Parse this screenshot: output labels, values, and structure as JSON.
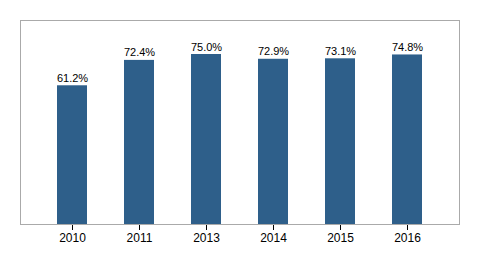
{
  "chart_data": {
    "type": "bar",
    "categories": [
      "2010",
      "2011",
      "2013",
      "2014",
      "2015",
      "2016"
    ],
    "values": [
      61.2,
      72.4,
      75.0,
      72.9,
      73.1,
      74.8
    ],
    "value_labels": [
      "61.2%",
      "72.4%",
      "75.0%",
      "72.9%",
      "73.1%",
      "74.8%"
    ],
    "color": "#2E5F8A",
    "ylim": [
      0,
      90
    ],
    "grid": false,
    "data_labels": true,
    "tick_labels": "x"
  }
}
